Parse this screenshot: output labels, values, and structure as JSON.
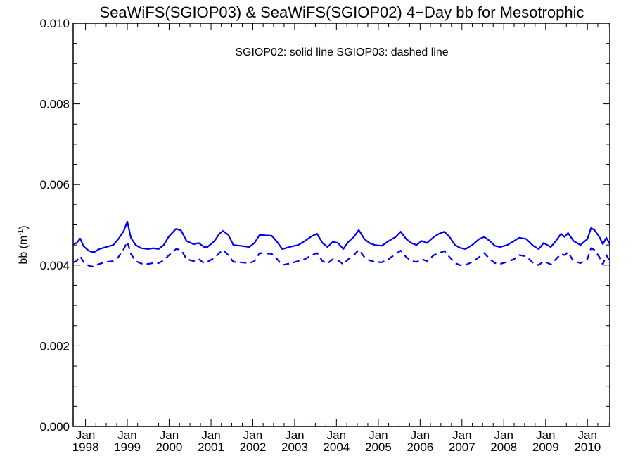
{
  "chart_data": {
    "type": "line",
    "title": "SeaWiFS(SGIOP03) & SeaWiFS(SGIOP02) 4−Day bb for Mesotrophic",
    "annotation": "SGIOP02: solid line   SGIOP03: dashed line",
    "ylabel": "bb (m",
    "ylabel_superscript": "-1",
    "ylabel_close": ")",
    "ylim": [
      0.0,
      0.01
    ],
    "yticks": [
      "0.000",
      "0.002",
      "0.004",
      "0.006",
      "0.008",
      "0.010"
    ],
    "xlim": [
      "1997-09-15",
      "2010-07-15"
    ],
    "xticks": [
      {
        "month": "Jan",
        "year": "1998",
        "date": "1998-01-01"
      },
      {
        "month": "Jan",
        "year": "1999",
        "date": "1999-01-01"
      },
      {
        "month": "Jan",
        "year": "2000",
        "date": "2000-01-01"
      },
      {
        "month": "Jan",
        "year": "2001",
        "date": "2001-01-01"
      },
      {
        "month": "Jan",
        "year": "2002",
        "date": "2002-01-01"
      },
      {
        "month": "Jan",
        "year": "2003",
        "date": "2003-01-01"
      },
      {
        "month": "Jan",
        "year": "2004",
        "date": "2004-01-01"
      },
      {
        "month": "Jan",
        "year": "2005",
        "date": "2005-01-01"
      },
      {
        "month": "Jan",
        "year": "2006",
        "date": "2006-01-01"
      },
      {
        "month": "Jan",
        "year": "2007",
        "date": "2007-01-01"
      },
      {
        "month": "Jan",
        "year": "2008",
        "date": "2008-01-01"
      },
      {
        "month": "Jan",
        "year": "2009",
        "date": "2009-01-01"
      },
      {
        "month": "Jan",
        "year": "2010",
        "date": "2010-01-01"
      }
    ],
    "grid": false,
    "colors": {
      "series": "#0000ff",
      "axes": "#000000"
    },
    "series": [
      {
        "name": "SGIOP02",
        "style": "solid",
        "points": [
          [
            "1997-09-15",
            0.00452
          ],
          [
            "1997-10-15",
            0.00455
          ],
          [
            "1997-11-15",
            0.00466
          ],
          [
            "1997-12-15",
            0.00447
          ],
          [
            "1998-02-01",
            0.00435
          ],
          [
            "1998-03-15",
            0.00432
          ],
          [
            "1998-05-01",
            0.0044
          ],
          [
            "1998-07-01",
            0.00445
          ],
          [
            "1998-09-01",
            0.0045
          ],
          [
            "1998-10-15",
            0.00465
          ],
          [
            "1998-12-01",
            0.00485
          ],
          [
            "1999-01-01",
            0.00508
          ],
          [
            "1999-02-01",
            0.00468
          ],
          [
            "1999-03-15",
            0.0045
          ],
          [
            "1999-05-01",
            0.00442
          ],
          [
            "1999-07-01",
            0.0044
          ],
          [
            "1999-08-15",
            0.00442
          ],
          [
            "1999-10-01",
            0.0044
          ],
          [
            "1999-11-15",
            0.0045
          ],
          [
            "2000-01-01",
            0.00472
          ],
          [
            "2000-03-01",
            0.0049
          ],
          [
            "2000-04-15",
            0.00486
          ],
          [
            "2000-06-01",
            0.0046
          ],
          [
            "2000-08-01",
            0.00452
          ],
          [
            "2000-09-15",
            0.00455
          ],
          [
            "2000-11-01",
            0.00445
          ],
          [
            "2000-12-01",
            0.00445
          ],
          [
            "2001-02-01",
            0.0046
          ],
          [
            "2001-03-15",
            0.00478
          ],
          [
            "2001-04-15",
            0.00485
          ],
          [
            "2001-06-01",
            0.00475
          ],
          [
            "2001-07-15",
            0.0045
          ],
          [
            "2001-09-15",
            0.00448
          ],
          [
            "2001-12-01",
            0.00445
          ],
          [
            "2002-01-15",
            0.00455
          ],
          [
            "2002-03-01",
            0.00475
          ],
          [
            "2002-06-15",
            0.00473
          ],
          [
            "2002-08-01",
            0.00458
          ],
          [
            "2002-09-15",
            0.0044
          ],
          [
            "2002-12-01",
            0.00446
          ],
          [
            "2003-02-01",
            0.0045
          ],
          [
            "2003-04-01",
            0.0046
          ],
          [
            "2003-06-01",
            0.00472
          ],
          [
            "2003-07-15",
            0.00478
          ],
          [
            "2003-09-01",
            0.00455
          ],
          [
            "2003-10-15",
            0.00445
          ],
          [
            "2003-12-01",
            0.00458
          ],
          [
            "2004-01-15",
            0.00455
          ],
          [
            "2004-03-01",
            0.0044
          ],
          [
            "2004-04-15",
            0.00458
          ],
          [
            "2004-06-01",
            0.0047
          ],
          [
            "2004-07-15",
            0.00487
          ],
          [
            "2004-09-01",
            0.00465
          ],
          [
            "2004-10-15",
            0.00455
          ],
          [
            "2004-12-01",
            0.0045
          ],
          [
            "2005-02-01",
            0.00448
          ],
          [
            "2005-04-01",
            0.0046
          ],
          [
            "2005-06-01",
            0.0047
          ],
          [
            "2005-07-15",
            0.00483
          ],
          [
            "2005-09-01",
            0.00465
          ],
          [
            "2005-10-15",
            0.00455
          ],
          [
            "2005-12-01",
            0.0045
          ],
          [
            "2006-01-15",
            0.0046
          ],
          [
            "2006-03-01",
            0.00455
          ],
          [
            "2006-05-01",
            0.0047
          ],
          [
            "2006-06-15",
            0.00478
          ],
          [
            "2006-08-01",
            0.00483
          ],
          [
            "2006-09-15",
            0.0047
          ],
          [
            "2006-11-01",
            0.0045
          ],
          [
            "2006-12-15",
            0.00443
          ],
          [
            "2007-02-01",
            0.0044
          ],
          [
            "2007-04-01",
            0.0045
          ],
          [
            "2007-06-01",
            0.00465
          ],
          [
            "2007-07-15",
            0.0047
          ],
          [
            "2007-09-01",
            0.0046
          ],
          [
            "2007-10-15",
            0.00448
          ],
          [
            "2007-12-01",
            0.00445
          ],
          [
            "2008-02-01",
            0.0045
          ],
          [
            "2008-04-01",
            0.0046
          ],
          [
            "2008-05-15",
            0.00468
          ],
          [
            "2008-07-15",
            0.00465
          ],
          [
            "2008-09-15",
            0.00448
          ],
          [
            "2008-11-01",
            0.0044
          ],
          [
            "2008-12-15",
            0.00455
          ],
          [
            "2009-02-15",
            0.00445
          ],
          [
            "2009-04-01",
            0.0046
          ],
          [
            "2009-05-15",
            0.00478
          ],
          [
            "2009-06-15",
            0.0047
          ],
          [
            "2009-07-15",
            0.0048
          ],
          [
            "2009-09-01",
            0.0046
          ],
          [
            "2009-11-01",
            0.0045
          ],
          [
            "2010-01-01",
            0.00465
          ],
          [
            "2010-02-01",
            0.00492
          ],
          [
            "2010-03-01",
            0.00488
          ],
          [
            "2010-04-15",
            0.0047
          ],
          [
            "2010-05-15",
            0.00452
          ],
          [
            "2010-06-15",
            0.00468
          ],
          [
            "2010-07-15",
            0.00452
          ]
        ]
      },
      {
        "name": "SGIOP03",
        "style": "dashed",
        "points": [
          [
            "1997-09-15",
            0.00407
          ],
          [
            "1997-10-15",
            0.0041
          ],
          [
            "1997-11-15",
            0.00422
          ],
          [
            "1997-12-15",
            0.00408
          ],
          [
            "1998-02-01",
            0.00398
          ],
          [
            "1998-03-15",
            0.00396
          ],
          [
            "1998-05-01",
            0.00403
          ],
          [
            "1998-07-01",
            0.00408
          ],
          [
            "1998-09-01",
            0.0041
          ],
          [
            "1998-10-15",
            0.0042
          ],
          [
            "1998-12-01",
            0.0044
          ],
          [
            "1999-01-01",
            0.00458
          ],
          [
            "1999-02-01",
            0.00428
          ],
          [
            "1999-03-15",
            0.0041
          ],
          [
            "1999-05-01",
            0.00404
          ],
          [
            "1999-07-01",
            0.00403
          ],
          [
            "1999-08-15",
            0.00405
          ],
          [
            "1999-10-01",
            0.00405
          ],
          [
            "1999-11-15",
            0.00412
          ],
          [
            "2000-01-01",
            0.00425
          ],
          [
            "2000-03-01",
            0.0044
          ],
          [
            "2000-04-15",
            0.00438
          ],
          [
            "2000-06-01",
            0.00415
          ],
          [
            "2000-08-01",
            0.0041
          ],
          [
            "2000-09-15",
            0.00415
          ],
          [
            "2000-11-01",
            0.00405
          ],
          [
            "2000-12-01",
            0.00408
          ],
          [
            "2001-02-01",
            0.00418
          ],
          [
            "2001-03-15",
            0.0043
          ],
          [
            "2001-04-15",
            0.00438
          ],
          [
            "2001-06-01",
            0.00425
          ],
          [
            "2001-07-15",
            0.00408
          ],
          [
            "2001-09-15",
            0.00407
          ],
          [
            "2001-12-01",
            0.00405
          ],
          [
            "2002-01-15",
            0.0041
          ],
          [
            "2002-03-01",
            0.0043
          ],
          [
            "2002-06-15",
            0.00428
          ],
          [
            "2002-08-01",
            0.00415
          ],
          [
            "2002-09-15",
            0.004
          ],
          [
            "2002-12-01",
            0.00405
          ],
          [
            "2003-02-01",
            0.0041
          ],
          [
            "2003-04-01",
            0.00415
          ],
          [
            "2003-06-01",
            0.00425
          ],
          [
            "2003-07-15",
            0.0043
          ],
          [
            "2003-09-01",
            0.0041
          ],
          [
            "2003-10-15",
            0.00404
          ],
          [
            "2003-12-01",
            0.00415
          ],
          [
            "2004-01-15",
            0.00412
          ],
          [
            "2004-03-01",
            0.00402
          ],
          [
            "2004-04-15",
            0.00415
          ],
          [
            "2004-06-01",
            0.00425
          ],
          [
            "2004-07-15",
            0.00438
          ],
          [
            "2004-09-01",
            0.0042
          ],
          [
            "2004-10-15",
            0.00412
          ],
          [
            "2004-12-01",
            0.00408
          ],
          [
            "2005-02-01",
            0.00407
          ],
          [
            "2005-04-01",
            0.00415
          ],
          [
            "2005-06-01",
            0.00428
          ],
          [
            "2005-07-15",
            0.00436
          ],
          [
            "2005-09-01",
            0.0042
          ],
          [
            "2005-10-15",
            0.0041
          ],
          [
            "2005-12-01",
            0.00408
          ],
          [
            "2006-01-15",
            0.00415
          ],
          [
            "2006-03-01",
            0.0041
          ],
          [
            "2006-05-01",
            0.00425
          ],
          [
            "2006-06-15",
            0.0043
          ],
          [
            "2006-08-01",
            0.00435
          ],
          [
            "2006-09-15",
            0.0042
          ],
          [
            "2006-11-01",
            0.00405
          ],
          [
            "2006-12-15",
            0.004
          ],
          [
            "2007-02-01",
            0.004
          ],
          [
            "2007-04-01",
            0.00408
          ],
          [
            "2007-06-01",
            0.0042
          ],
          [
            "2007-07-15",
            0.0043
          ],
          [
            "2007-09-01",
            0.00415
          ],
          [
            "2007-10-15",
            0.00405
          ],
          [
            "2007-12-01",
            0.00403
          ],
          [
            "2008-02-01",
            0.00408
          ],
          [
            "2008-04-01",
            0.00415
          ],
          [
            "2008-05-15",
            0.00425
          ],
          [
            "2008-07-15",
            0.00422
          ],
          [
            "2008-09-15",
            0.00405
          ],
          [
            "2008-11-01",
            0.004
          ],
          [
            "2008-12-15",
            0.0041
          ],
          [
            "2009-02-15",
            0.00402
          ],
          [
            "2009-04-01",
            0.00415
          ],
          [
            "2009-05-15",
            0.00428
          ],
          [
            "2009-06-15",
            0.00425
          ],
          [
            "2009-07-15",
            0.00432
          ],
          [
            "2009-09-01",
            0.0041
          ],
          [
            "2009-11-01",
            0.00405
          ],
          [
            "2010-01-01",
            0.00415
          ],
          [
            "2010-02-01",
            0.00442
          ],
          [
            "2010-03-01",
            0.00438
          ],
          [
            "2010-04-15",
            0.0042
          ],
          [
            "2010-05-15",
            0.00402
          ],
          [
            "2010-06-15",
            0.00425
          ],
          [
            "2010-07-15",
            0.0041
          ]
        ]
      }
    ]
  }
}
